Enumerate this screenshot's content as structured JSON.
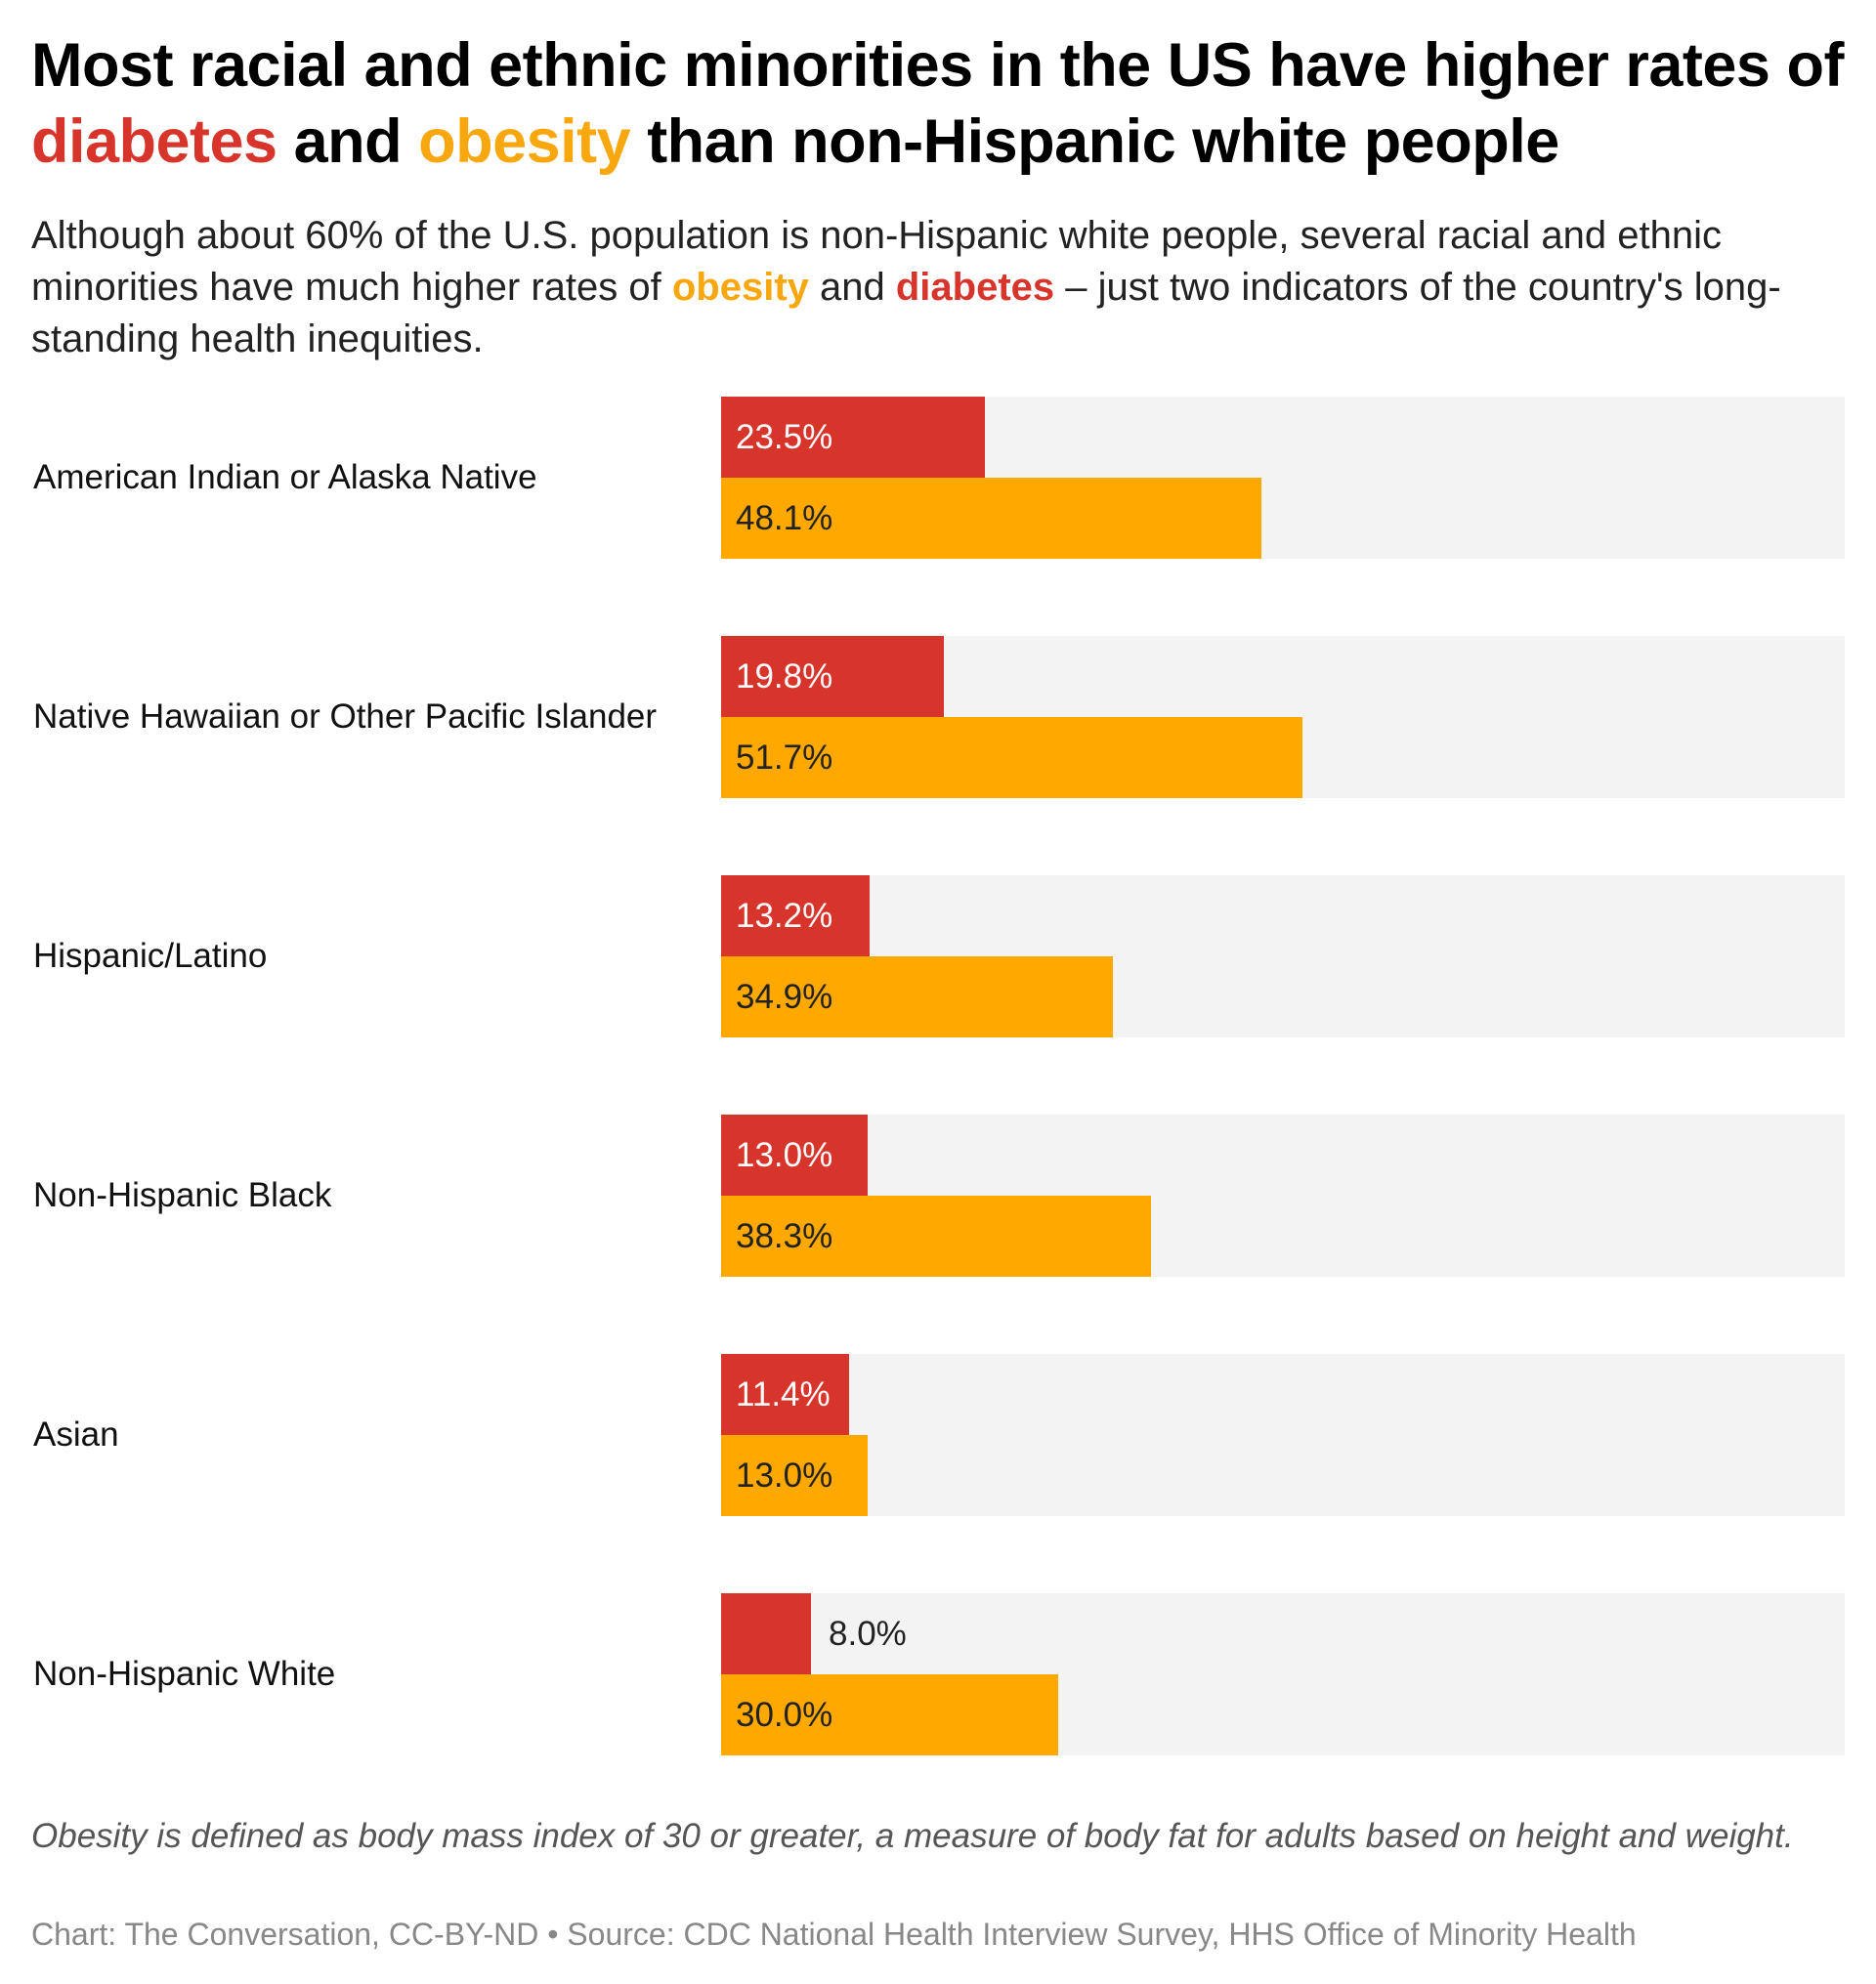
{
  "title": {
    "part1": "Most racial and ethnic minorities in the US have higher rates of ",
    "diabetes": "diabetes",
    "part2": " and ",
    "obesity": "obesity",
    "part3": " than non-Hispanic white people"
  },
  "subtitle": {
    "part1": "Although about 60% of the U.S. population is non-Hispanic white people, several racial and ethnic minorities have much higher rates of ",
    "obesity": "obesity",
    "part2": " and ",
    "diabetes": "diabetes",
    "part3": " – just two indicators of the country's long-standing health inequities."
  },
  "colors": {
    "diabetes": "#d7352b",
    "obesity": "#ffa800",
    "track": "#f3f3f3"
  },
  "chart_data": {
    "type": "bar",
    "orientation": "horizontal",
    "categories": [
      "American Indian or Alaska Native",
      "Native Hawaiian or Other Pacific Islander",
      "Hispanic/Latino",
      "Non-Hispanic Black",
      "Asian",
      "Non-Hispanic White"
    ],
    "series": [
      {
        "key": "diabetes",
        "values": [
          23.5,
          19.8,
          13.2,
          13.0,
          11.4,
          8.0
        ],
        "labels": [
          "23.5%",
          "19.8%",
          "13.2%",
          "13.0%",
          "11.4%",
          "8.0%"
        ]
      },
      {
        "key": "obesity",
        "values": [
          48.1,
          51.7,
          34.9,
          38.3,
          13.0,
          30.0
        ],
        "labels": [
          "48.1%",
          "51.7%",
          "34.9%",
          "38.3%",
          "13.0%",
          "30.0%"
        ]
      }
    ],
    "xlim": [
      0,
      100
    ],
    "unit": "%",
    "grid": false
  },
  "note": "Obesity is defined as body mass index of 30 or greater, a measure of body fat for adults based on height and weight.",
  "source": "Chart: The Conversation, CC-BY-ND • Source: CDC National Health Interview Survey, HHS Office of Minority Health"
}
